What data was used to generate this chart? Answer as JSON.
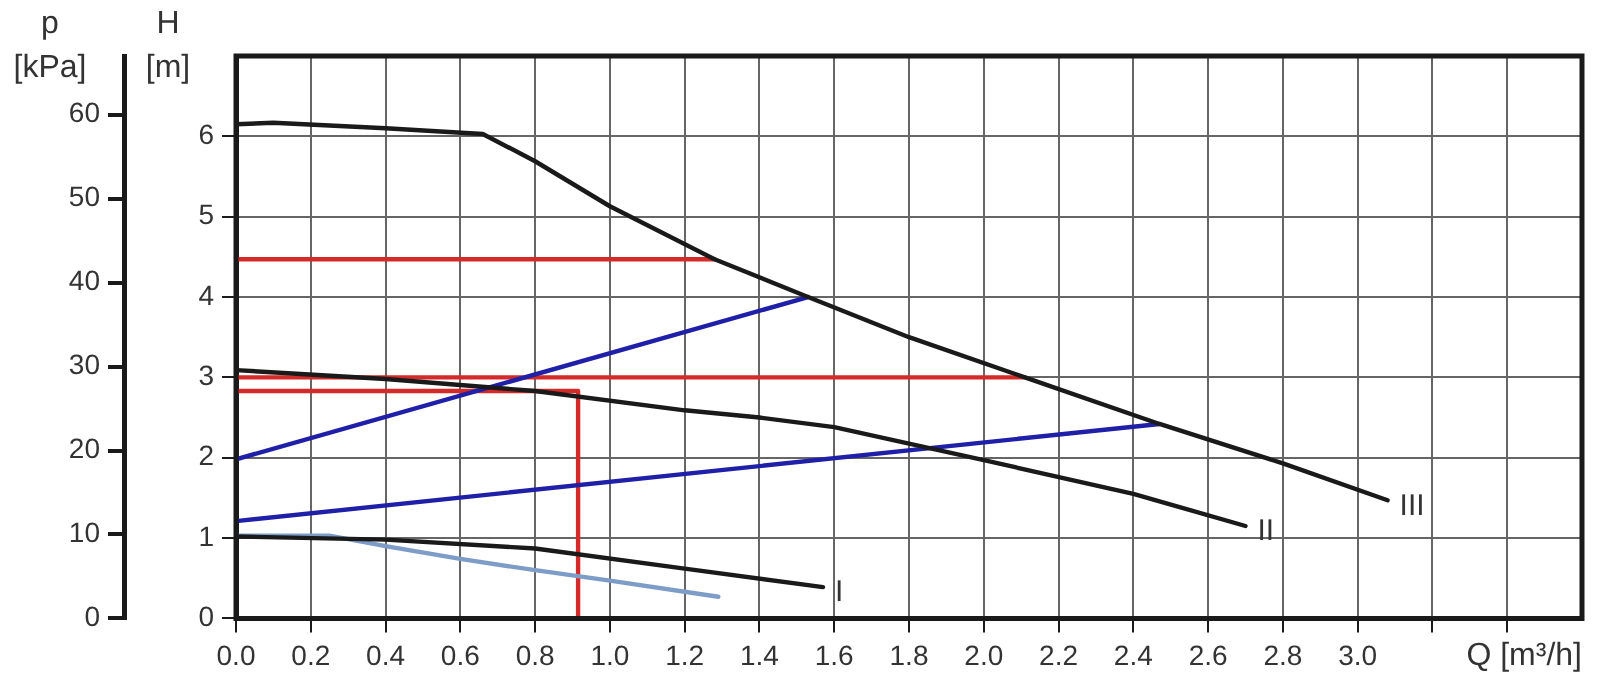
{
  "chart_data": {
    "type": "line",
    "xlabel": "Q [m³/h]",
    "ylabel": "H\n[m]",
    "y2label": "p\n[kPa]",
    "xlim": [
      0,
      3.6
    ],
    "xticks": [
      {
        "value": 0,
        "label": "0.0"
      },
      0.2,
      0.4,
      0.6,
      0.8,
      {
        "value": 1,
        "label": "1.0"
      },
      1.2,
      1.4,
      1.6,
      1.8,
      {
        "value": 2,
        "label": "2.0"
      },
      2.2,
      2.4,
      2.6,
      2.8,
      {
        "value": 3,
        "label": "3.0"
      },
      {
        "value": 3.2,
        "label": null
      },
      {
        "value": 3.4,
        "label": null
      }
    ],
    "ylim": [
      0,
      7
    ],
    "yticks": [
      0,
      1,
      2,
      3,
      4,
      5,
      6
    ],
    "y2lim": [
      0,
      67
    ],
    "y2ticks": [
      0,
      10,
      20,
      30,
      40,
      50,
      60
    ],
    "grid": true,
    "legend": false,
    "marker": "none",
    "line_style": "solid",
    "series": [
      {
        "name": "III",
        "color": "#1a1a1a",
        "x": [
          0,
          0.1,
          0.4,
          0.66,
          0.8,
          1.0,
          1.28,
          1.53,
          1.8,
          2.11,
          2.47,
          2.8,
          3.08
        ],
        "values": [
          6.15,
          6.17,
          6.1,
          6.03,
          5.69,
          5.13,
          4.47,
          4.0,
          3.5,
          3.0,
          2.42,
          1.93,
          1.47
        ]
      },
      {
        "name": "II",
        "color": "#1a1a1a",
        "x": [
          0,
          0.4,
          0.8,
          1.2,
          1.4,
          1.6,
          2.0,
          2.4,
          2.7
        ],
        "values": [
          3.09,
          2.98,
          2.83,
          2.59,
          2.5,
          2.38,
          1.97,
          1.55,
          1.15
        ]
      },
      {
        "name": "I",
        "color": "#1a1a1a",
        "x": [
          0,
          0.4,
          0.8,
          1.2,
          1.57
        ],
        "values": [
          1.02,
          0.98,
          0.87,
          0.62,
          0.39
        ]
      },
      {
        "color": "#7d9cc8",
        "x": [
          0,
          0.25,
          0.4,
          0.6,
          0.8,
          1.0,
          1.29
        ],
        "values": [
          1.03,
          1.03,
          0.9,
          0.74,
          0.6,
          0.47,
          0.27
        ]
      },
      {
        "color": "#1f1fa8",
        "x": [
          0,
          1.53
        ],
        "values": [
          1.98,
          4.0
        ]
      },
      {
        "color": "#1f1fa8",
        "x": [
          0,
          2.47
        ],
        "values": [
          1.21,
          2.42
        ]
      },
      {
        "color": "#d42a2a",
        "x": [
          0,
          1.28
        ],
        "values": [
          4.47,
          4.47
        ]
      },
      {
        "color": "#d42a2a",
        "x": [
          0,
          2.11
        ],
        "values": [
          3.0,
          3.0
        ]
      },
      {
        "color": "#d42a2a",
        "x": [
          0,
          0.915,
          0.915
        ],
        "values": [
          2.83,
          2.83,
          0
        ]
      }
    ]
  }
}
